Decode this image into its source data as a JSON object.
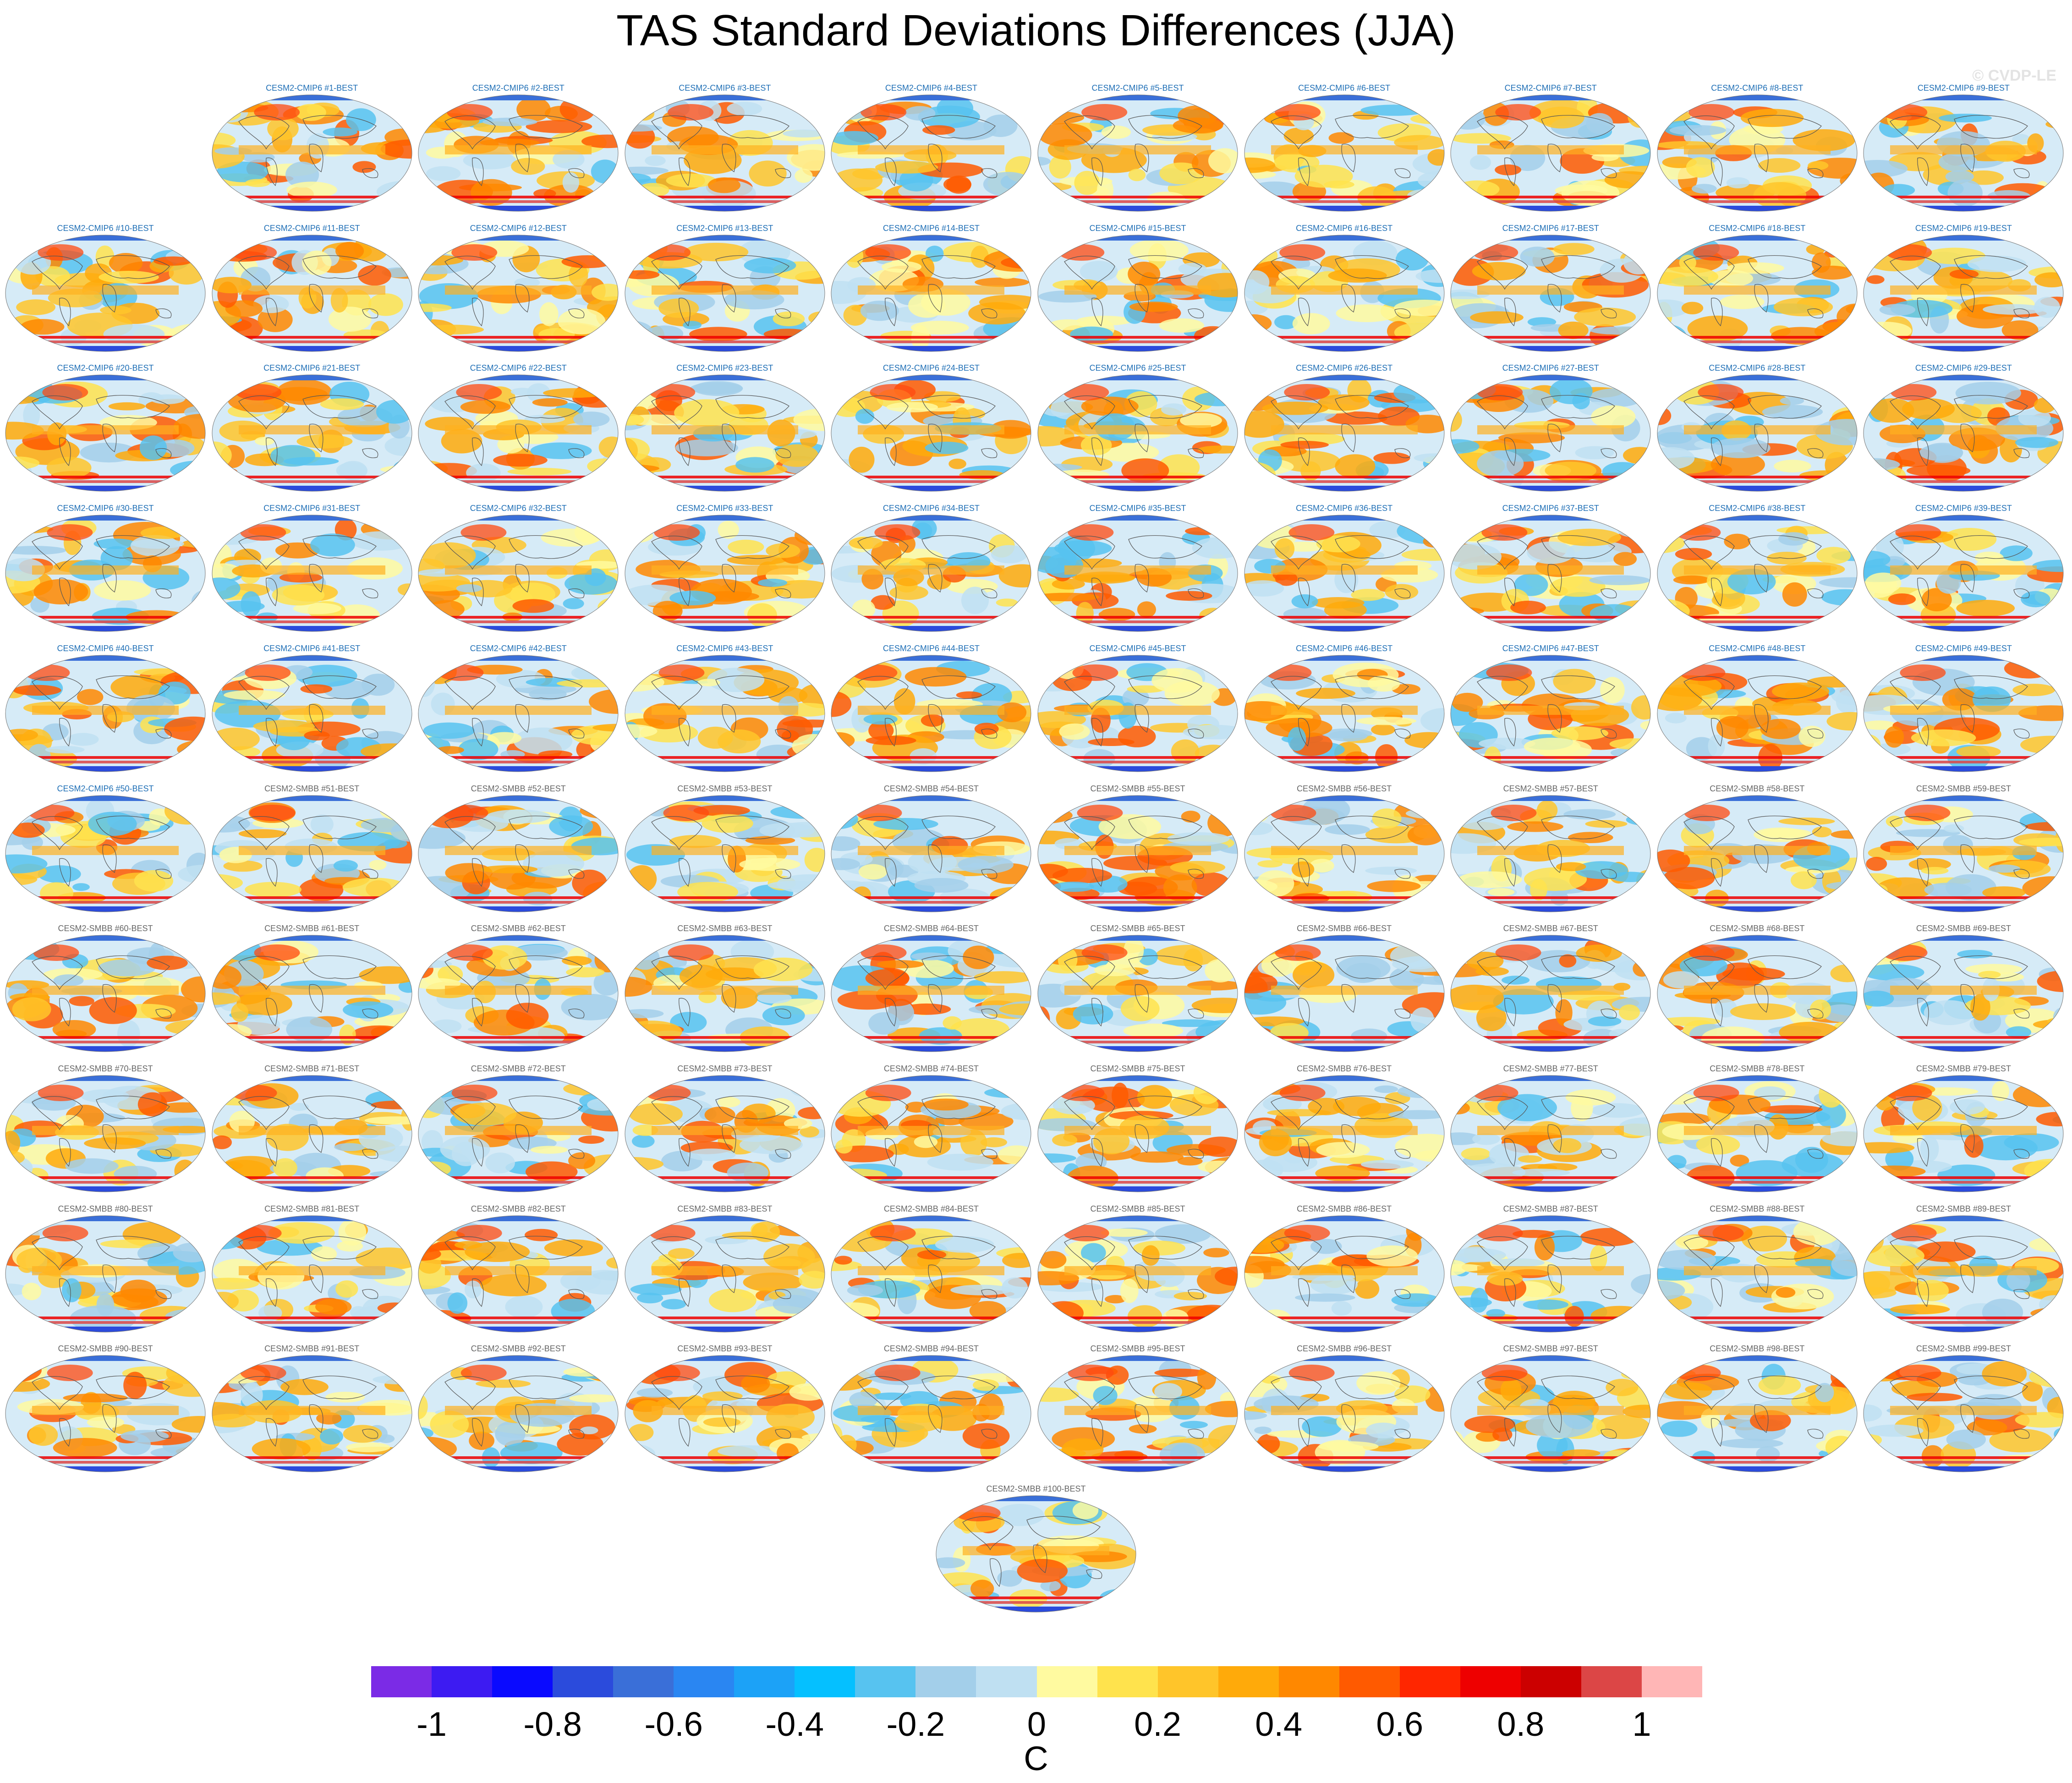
{
  "title": "TAS Standard Deviations Differences (JJA)",
  "watermark": "© CVDP-LE",
  "panels": [
    "CESM2-CMIP6 #1-BEST",
    "CESM2-CMIP6 #2-BEST",
    "CESM2-CMIP6 #3-BEST",
    "CESM2-CMIP6 #4-BEST",
    "CESM2-CMIP6 #5-BEST",
    "CESM2-CMIP6 #6-BEST",
    "CESM2-CMIP6 #7-BEST",
    "CESM2-CMIP6 #8-BEST",
    "CESM2-CMIP6 #9-BEST",
    "CESM2-CMIP6 #10-BEST",
    "CESM2-CMIP6 #11-BEST",
    "CESM2-CMIP6 #12-BEST",
    "CESM2-CMIP6 #13-BEST",
    "CESM2-CMIP6 #14-BEST",
    "CESM2-CMIP6 #15-BEST",
    "CESM2-CMIP6 #16-BEST",
    "CESM2-CMIP6 #17-BEST",
    "CESM2-CMIP6 #18-BEST",
    "CESM2-CMIP6 #19-BEST",
    "CESM2-CMIP6 #20-BEST",
    "CESM2-CMIP6 #21-BEST",
    "CESM2-CMIP6 #22-BEST",
    "CESM2-CMIP6 #23-BEST",
    "CESM2-CMIP6 #24-BEST",
    "CESM2-CMIP6 #25-BEST",
    "CESM2-CMIP6 #26-BEST",
    "CESM2-CMIP6 #27-BEST",
    "CESM2-CMIP6 #28-BEST",
    "CESM2-CMIP6 #29-BEST",
    "CESM2-CMIP6 #30-BEST",
    "CESM2-CMIP6 #31-BEST",
    "CESM2-CMIP6 #32-BEST",
    "CESM2-CMIP6 #33-BEST",
    "CESM2-CMIP6 #34-BEST",
    "CESM2-CMIP6 #35-BEST",
    "CESM2-CMIP6 #36-BEST",
    "CESM2-CMIP6 #37-BEST",
    "CESM2-CMIP6 #38-BEST",
    "CESM2-CMIP6 #39-BEST",
    "CESM2-CMIP6 #40-BEST",
    "CESM2-CMIP6 #41-BEST",
    "CESM2-CMIP6 #42-BEST",
    "CESM2-CMIP6 #43-BEST",
    "CESM2-CMIP6 #44-BEST",
    "CESM2-CMIP6 #45-BEST",
    "CESM2-CMIP6 #46-BEST",
    "CESM2-CMIP6 #47-BEST",
    "CESM2-CMIP6 #48-BEST",
    "CESM2-CMIP6 #49-BEST",
    "CESM2-CMIP6 #50-BEST",
    "CESM2-SMBB #51-BEST",
    "CESM2-SMBB #52-BEST",
    "CESM2-SMBB #53-BEST",
    "CESM2-SMBB #54-BEST",
    "CESM2-SMBB #55-BEST",
    "CESM2-SMBB #56-BEST",
    "CESM2-SMBB #57-BEST",
    "CESM2-SMBB #58-BEST",
    "CESM2-SMBB #59-BEST",
    "CESM2-SMBB #60-BEST",
    "CESM2-SMBB #61-BEST",
    "CESM2-SMBB #62-BEST",
    "CESM2-SMBB #63-BEST",
    "CESM2-SMBB #64-BEST",
    "CESM2-SMBB #65-BEST",
    "CESM2-SMBB #66-BEST",
    "CESM2-SMBB #67-BEST",
    "CESM2-SMBB #68-BEST",
    "CESM2-SMBB #69-BEST",
    "CESM2-SMBB #70-BEST",
    "CESM2-SMBB #71-BEST",
    "CESM2-SMBB #72-BEST",
    "CESM2-SMBB #73-BEST",
    "CESM2-SMBB #74-BEST",
    "CESM2-SMBB #75-BEST",
    "CESM2-SMBB #76-BEST",
    "CESM2-SMBB #77-BEST",
    "CESM2-SMBB #78-BEST",
    "CESM2-SMBB #79-BEST",
    "CESM2-SMBB #80-BEST",
    "CESM2-SMBB #81-BEST",
    "CESM2-SMBB #82-BEST",
    "CESM2-SMBB #83-BEST",
    "CESM2-SMBB #84-BEST",
    "CESM2-SMBB #85-BEST",
    "CESM2-SMBB #86-BEST",
    "CESM2-SMBB #87-BEST",
    "CESM2-SMBB #88-BEST",
    "CESM2-SMBB #89-BEST",
    "CESM2-SMBB #90-BEST",
    "CESM2-SMBB #91-BEST",
    "CESM2-SMBB #92-BEST",
    "CESM2-SMBB #93-BEST",
    "CESM2-SMBB #94-BEST",
    "CESM2-SMBB #95-BEST",
    "CESM2-SMBB #96-BEST",
    "CESM2-SMBB #97-BEST",
    "CESM2-SMBB #98-BEST",
    "CESM2-SMBB #99-BEST",
    "CESM2-SMBB #100-BEST"
  ],
  "colorbar": {
    "colors": [
      "#7b2be6",
      "#3d1bf2",
      "#0a0aff",
      "#2b4bdc",
      "#3a6fd8",
      "#2a86f2",
      "#1ca2f7",
      "#05c0ff",
      "#57c3f0",
      "#a3cfea",
      "#bfe0f2",
      "#fffaa0",
      "#ffe34d",
      "#ffc52a",
      "#ffaa0a",
      "#ff8800",
      "#ff5a00",
      "#ff2600",
      "#ee0000",
      "#cc0000",
      "#dc4646",
      "#ffb6b6"
    ],
    "tick_labels": [
      "-1",
      "-0.8",
      "-0.6",
      "-0.4",
      "-0.2",
      "0",
      "0.2",
      "0.4",
      "0.6",
      "0.8",
      "1"
    ],
    "units": "C"
  }
}
